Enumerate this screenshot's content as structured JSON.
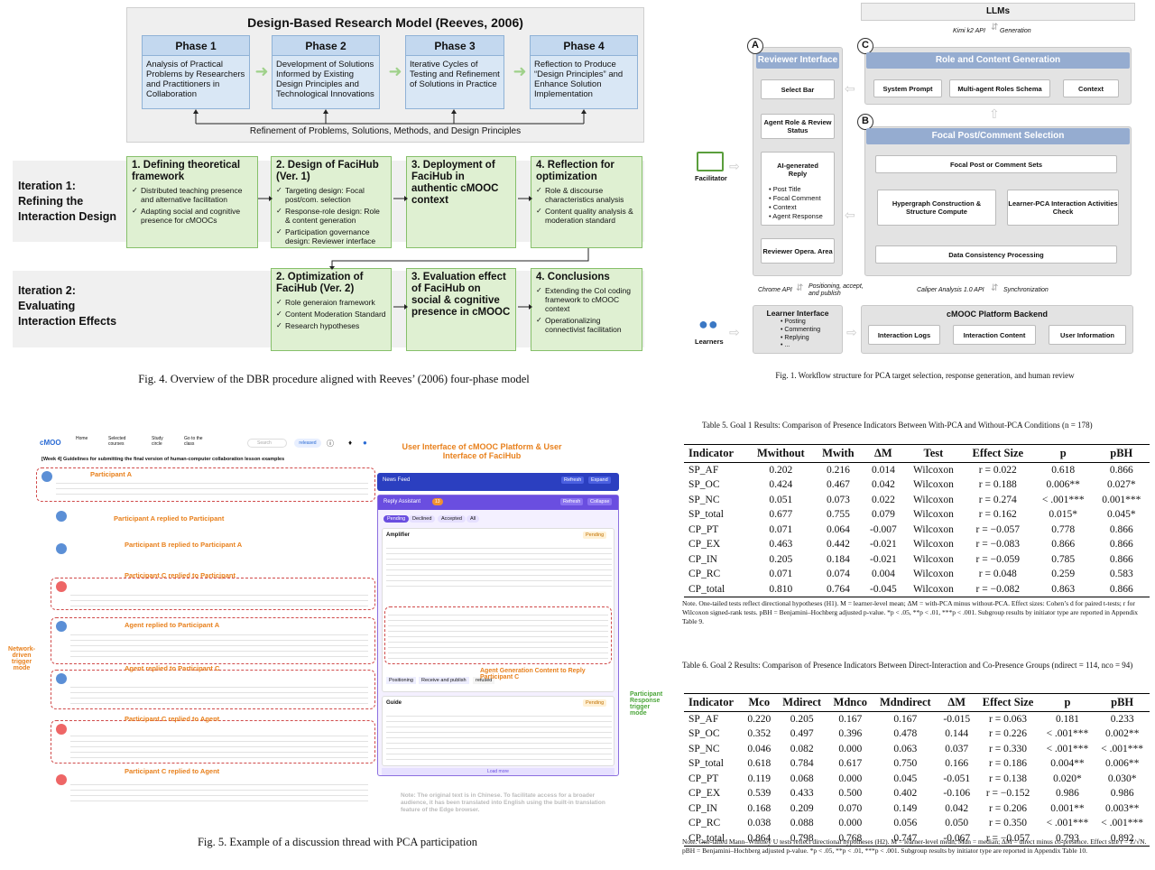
{
  "fig4": {
    "title": "Design-Based Research Model (Reeves, 2006)",
    "phases": [
      {
        "label": "Phase 1",
        "text": "Analysis of Practical Problems by Researchers and Practitioners in Collaboration"
      },
      {
        "label": "Phase 2",
        "text": "Development of Solutions Informed by Existing Design Principles and Technological Innovations"
      },
      {
        "label": "Phase 3",
        "text": "Iterative Cycles of Testing and Refinement of Solutions in Practice"
      },
      {
        "label": "Phase 4",
        "text": "Reflection to Produce “Design Principles” and Enhance Solution Implementation"
      }
    ],
    "refinement": "Refinement of Problems, Solutions, Methods, and Design Principles",
    "iter1_label": "Iteration 1:\nRefining the\nInteraction Design",
    "iter2_label": "Iteration 2:\nEvaluating\nInteraction Effects",
    "iter1_boxes": [
      {
        "head": "1. Defining theoretical framework",
        "items": [
          "Distributed teaching presence and alternative facilitation",
          "Adapting social and cognitive presence for cMOOCs"
        ]
      },
      {
        "head": "2. Design of FaciHub (Ver. 1)",
        "items": [
          "Targeting design: Focal post/com. selection",
          "Response-role design: Role & content generation",
          "Participation governance design: Reviewer interface"
        ]
      },
      {
        "head": "3. Deployment of FaciHub in authentic cMOOC context",
        "items": []
      },
      {
        "head": "4. Reflection for optimization",
        "items": [
          "Role & discourse characteristics analysis",
          "Content quality analysis & moderation standard"
        ]
      }
    ],
    "iter2_boxes": [
      {
        "head": "2. Optimization of FaciHub (Ver. 2)",
        "items": [
          "Role generaion framework",
          "Content Moderation Standard",
          "Research hypotheses"
        ]
      },
      {
        "head": "3. Evaluation effect of FaciHub on social & cognitive presence in cMOOC",
        "items": []
      },
      {
        "head": "4. Conclusions",
        "items": [
          "Extending the CoI coding framework to cMOOC context",
          "Operationalizing connectivist facilitation"
        ]
      }
    ],
    "caption": "Fig. 4.  Overview of the DBR procedure aligned with Reeves’ (2006) four-phase model"
  },
  "fig1": {
    "llms": "LLMs",
    "kimi": "Kimi k2 API",
    "generation": "Generation",
    "reviewer_interface": "Reviewer Interface",
    "select_bar": "Select Bar",
    "agent_role": "Agent Role & Review Status",
    "ai_reply": "AI-generated Reply",
    "ai_reply_items": [
      "Post Title",
      "Focal Comment",
      "Context",
      "Agent Response"
    ],
    "reviewer_area": "Reviewer Opera. Area",
    "role_content": "Role and Content Generation",
    "system_prompt": "System Prompt",
    "multi_agent": "Multi-agent Roles Schema",
    "context": "Context",
    "focal_selection": "Focal Post/Comment Selection",
    "focal_sets": "Focal Post or Comment Sets",
    "hypergraph": "Hypergraph Construction & Structure Compute",
    "learner_pca": "Learner-PCA Interaction Activities Check",
    "data_consistency": "Data Consistency Processing",
    "facilitator": "Facilitator",
    "learners": "Learners",
    "chrome_api": "Chrome API",
    "positioning": "Positioning, accept, and publish",
    "caliper": "Caliper Analysis 1.0 API",
    "sync": "Synchronization",
    "learner_interface": "Learner Interface",
    "learner_items": [
      "Posting",
      "Commenting",
      "Replying",
      "..."
    ],
    "backend": "cMOOC Platform Backend",
    "interaction_logs": "Interaction Logs",
    "interaction_content": "Interaction Content",
    "user_info": "User Information",
    "caption": "Fig. 1.  Workflow structure for PCA target selection, response generation, and human review",
    "labels": [
      "A",
      "B",
      "C"
    ]
  },
  "fig5": {
    "logo": "cMOO",
    "nav": [
      "Home",
      "Selected courses",
      "Study circle",
      "Go to the class"
    ],
    "search": "Search",
    "released": "released",
    "thread_title": "[Week 4] Guidelines for submitting the final version of human-computer collaboration lesson examples",
    "annotation_title": "User Interface of cMOOC Platform & User Interface of FaciHub",
    "tags": [
      "Participant A",
      "Participant A replied to Participant",
      "Participant B replied to Participant A",
      "Participant C replied to Participant",
      "Agent replied to Participant A",
      "Agent replied to Participant C",
      "Participant C replied to Agent",
      "Participant C replied to Agent"
    ],
    "side_left": "Network-driven trigger mode",
    "side_right": "Participant Response trigger mode",
    "news_feed": "News Feed",
    "refresh": "Refresh",
    "expand": "Expand",
    "reply_assistant": "Reply Assistant",
    "reply_count": "13",
    "collapse": "Collapse",
    "filters": [
      "Pending",
      "Declined",
      "Accepted",
      "All"
    ],
    "amplifier": "Amplifier",
    "guide": "Guide",
    "pending": "Pending",
    "positioning": "Positioning",
    "receive": "Receive and publish",
    "refused": "refused",
    "gen_label": "Agent Generation Content to Reply Participant C",
    "load_more": "Load more",
    "note": "Note: The original text is in Chinese. To facilitate access for a broader audience, it has been translated into English using the built-in translation feature of the Edge browser.",
    "caption": "Fig. 5.  Example of a discussion thread with PCA participation"
  },
  "table5": {
    "caption": "Table 5.  Goal 1 Results: Comparison of Presence Indicators Between With-PCA and Without-PCA Conditions (n = 178)",
    "headers": [
      "Indicator",
      "Mwithout",
      "Mwith",
      "ΔM",
      "Test",
      "Effect Size",
      "p",
      "pBH"
    ],
    "rows": [
      [
        "SP_AF",
        "0.202",
        "0.216",
        "0.014",
        "Wilcoxon",
        "r = 0.022",
        "0.618",
        "0.866"
      ],
      [
        "SP_OC",
        "0.424",
        "0.467",
        "0.042",
        "Wilcoxon",
        "r = 0.188",
        "0.006**",
        "0.027*"
      ],
      [
        "SP_NC",
        "0.051",
        "0.073",
        "0.022",
        "Wilcoxon",
        "r = 0.274",
        "< .001***",
        "0.001***"
      ],
      [
        "SP_total",
        "0.677",
        "0.755",
        "0.079",
        "Wilcoxon",
        "r = 0.162",
        "0.015*",
        "0.045*"
      ],
      [
        "CP_PT",
        "0.071",
        "0.064",
        "-0.007",
        "Wilcoxon",
        "r = −0.057",
        "0.778",
        "0.866"
      ],
      [
        "CP_EX",
        "0.463",
        "0.442",
        "-0.021",
        "Wilcoxon",
        "r = −0.083",
        "0.866",
        "0.866"
      ],
      [
        "CP_IN",
        "0.205",
        "0.184",
        "-0.021",
        "Wilcoxon",
        "r = −0.059",
        "0.785",
        "0.866"
      ],
      [
        "CP_RC",
        "0.071",
        "0.074",
        "0.004",
        "Wilcoxon",
        "r = 0.048",
        "0.259",
        "0.583"
      ],
      [
        "CP_total",
        "0.810",
        "0.764",
        "-0.045",
        "Wilcoxon",
        "r = −0.082",
        "0.863",
        "0.866"
      ]
    ],
    "note": "Note. One-tailed tests reflect directional hypotheses (H1). M = learner-level mean; ΔM = with-PCA minus without-PCA. Effect sizes: Cohen’s d for paired t-tests; r for Wilcoxon signed-rank tests. pBH = Benjamini–Hochberg adjusted p-value. *p < .05, **p < .01, ***p < .001. Subgroup results by initiator type are reported in Appendix Table 9."
  },
  "table6": {
    "caption": "Table 6.  Goal 2 Results: Comparison of Presence Indicators Between Direct-Interaction and Co-Presence Groups (ndirect = 114, nco = 94)",
    "headers": [
      "Indicator",
      "Mco",
      "Mdirect",
      "Mdnco",
      "Mdndirect",
      "ΔM",
      "Effect Size",
      "p",
      "pBH"
    ],
    "rows": [
      [
        "SP_AF",
        "0.220",
        "0.205",
        "0.167",
        "0.167",
        "-0.015",
        "r = 0.063",
        "0.181",
        "0.233"
      ],
      [
        "SP_OC",
        "0.352",
        "0.497",
        "0.396",
        "0.478",
        "0.144",
        "r = 0.226",
        "< .001***",
        "0.002**"
      ],
      [
        "SP_NC",
        "0.046",
        "0.082",
        "0.000",
        "0.063",
        "0.037",
        "r = 0.330",
        "< .001***",
        "< .001***"
      ],
      [
        "SP_total",
        "0.618",
        "0.784",
        "0.617",
        "0.750",
        "0.166",
        "r = 0.186",
        "0.004**",
        "0.006**"
      ],
      [
        "CP_PT",
        "0.119",
        "0.068",
        "0.000",
        "0.045",
        "-0.051",
        "r = 0.138",
        "0.020*",
        "0.030*"
      ],
      [
        "CP_EX",
        "0.539",
        "0.433",
        "0.500",
        "0.402",
        "-0.106",
        "r = −0.152",
        "0.986",
        "0.986"
      ],
      [
        "CP_IN",
        "0.168",
        "0.209",
        "0.070",
        "0.149",
        "0.042",
        "r = 0.206",
        "0.001**",
        "0.003**"
      ],
      [
        "CP_RC",
        "0.038",
        "0.088",
        "0.000",
        "0.056",
        "0.050",
        "r = 0.350",
        "< .001***",
        "< .001***"
      ],
      [
        "CP_total",
        "0.864",
        "0.798",
        "0.768",
        "0.747",
        "-0.067",
        "r = −0.057",
        "0.793",
        "0.892"
      ]
    ],
    "note": "Note. One-tailed Mann–Whitney U tests reflect directional hypotheses (H2). M = learner-level mean; Mdn = median; ΔM = direct minus co-presence. Effect size r = Z/√N. pBH = Benjamini–Hochberg adjusted p-value. *p < .05, **p < .01, ***p < .001. Subgroup results by initiator type are reported in Appendix Table 10."
  }
}
